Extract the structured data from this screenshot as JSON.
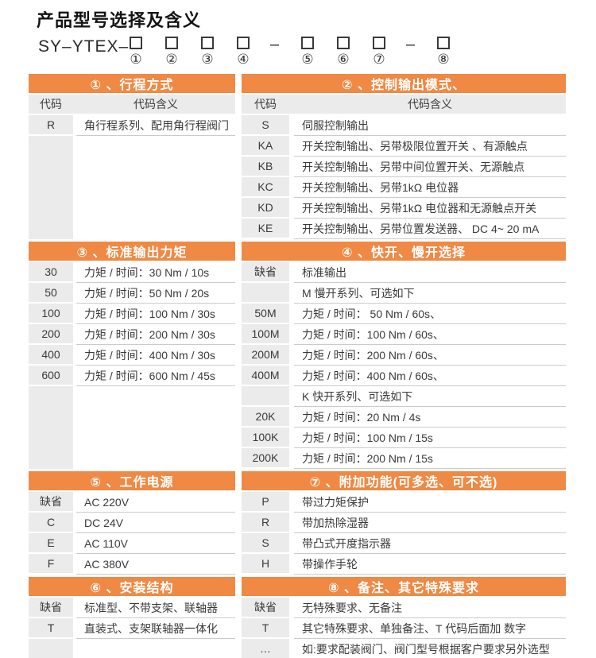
{
  "page": {
    "title": "产品型号选择及含义",
    "accent_color": "#EF8944",
    "cell_gray": "#EBEBEB",
    "line_color": "#CBCBCB",
    "text_color": "#3A3A3A"
  },
  "model": {
    "prefix": "SY–YTEX–",
    "separator": "–",
    "groups": [
      {
        "boxes": [
          "①",
          "②",
          "③",
          "④"
        ]
      },
      {
        "boxes": [
          "⑤",
          "⑥",
          "⑦"
        ]
      },
      {
        "boxes": [
          "⑧"
        ]
      }
    ]
  },
  "col_headers": {
    "code": "代码",
    "meaning": "代码含义"
  },
  "bands": [
    {
      "left": {
        "header": "① 、行程方式",
        "show_col_headers": true,
        "rows": [
          {
            "code": "R",
            "meaning": "角行程系列、配用角行程阀门"
          }
        ],
        "filler": true
      },
      "right": {
        "header": "② 、控制输出模式、",
        "show_col_headers": true,
        "rows": [
          {
            "code": "S",
            "meaning": "伺服控制输出"
          },
          {
            "code": "KA",
            "meaning": "开关控制输出、另带极限位置开关 、有源触点"
          },
          {
            "code": "KB",
            "meaning": "开关控制输出、另带中间位置开关、无源触点"
          },
          {
            "code": "KC",
            "meaning": "开关控制输出、另带1kΩ 电位器"
          },
          {
            "code": "KD",
            "meaning": "开关控制输出、另带1kΩ 电位器和无源触点开关"
          },
          {
            "code": "KE",
            "meaning": "开关控制输出、另带位置发送器、 DC 4~ 20 mA"
          }
        ],
        "filler": false
      }
    },
    {
      "left": {
        "header": "③ 、标准输出力矩",
        "show_col_headers": false,
        "rows": [
          {
            "code": "30",
            "meaning": "力矩 / 时间：30 Nm / 10s"
          },
          {
            "code": "50",
            "meaning": "力矩 / 时间：50 Nm / 20s"
          },
          {
            "code": "100",
            "meaning": "力矩 / 时间：100 Nm / 30s"
          },
          {
            "code": "200",
            "meaning": "力矩 / 时间：200 Nm / 30s"
          },
          {
            "code": "400",
            "meaning": "力矩 / 时间：400 Nm / 30s"
          },
          {
            "code": "600",
            "meaning": "力矩 / 时间：600 Nm / 45s"
          }
        ],
        "filler": true
      },
      "right": {
        "header": "④ 、快开、慢开选择",
        "show_col_headers": false,
        "rows": [
          {
            "code": "缺省",
            "meaning": "标准输出"
          },
          {
            "code": "",
            "meaning": "M 慢开系列、可选如下"
          },
          {
            "code": "50M",
            "meaning": "力矩 / 时间： 50 Nm / 60s、"
          },
          {
            "code": "100M",
            "meaning": "力矩 / 时间：100 Nm / 60s、"
          },
          {
            "code": "200M",
            "meaning": "力矩 / 时间：200 Nm / 60s、"
          },
          {
            "code": "400M",
            "meaning": "力矩 / 时间：400 Nm / 60s、"
          },
          {
            "code": "",
            "meaning": "K 快开系列、可选如下"
          },
          {
            "code": "20K",
            "meaning": "力矩 / 时间：20 Nm / 4s"
          },
          {
            "code": "100K",
            "meaning": "力矩 / 时间：100 Nm / 15s"
          },
          {
            "code": "200K",
            "meaning": "力矩 / 时间：200 Nm / 15s"
          }
        ],
        "filler": false
      }
    },
    {
      "left": {
        "header": "⑤ 、工作电源",
        "show_col_headers": false,
        "rows": [
          {
            "code": "缺省",
            "meaning": "AC 220V"
          },
          {
            "code": "C",
            "meaning": "DC 24V"
          },
          {
            "code": "E",
            "meaning": "AC 110V"
          },
          {
            "code": "F",
            "meaning": "AC 380V"
          }
        ],
        "filler": false
      },
      "right": {
        "header": "⑦ 、附加功能(可多选、可不选)",
        "show_col_headers": false,
        "rows": [
          {
            "code": "P",
            "meaning": "带过力矩保护"
          },
          {
            "code": "R",
            "meaning": "带加热除湿器"
          },
          {
            "code": "S",
            "meaning": "带凸式开度指示器"
          },
          {
            "code": "H",
            "meaning": "带操作手轮"
          }
        ],
        "filler": false
      }
    },
    {
      "left": {
        "header": "⑥ 、安装结构",
        "show_col_headers": false,
        "rows": [
          {
            "code": "缺省",
            "meaning": "标准型、不带支架、联轴器"
          },
          {
            "code": "T",
            "meaning": "直装式、支架联轴器一体化"
          },
          {
            "code": "",
            "meaning": ""
          }
        ],
        "filler": false
      },
      "right": {
        "header": "⑧ 、备注、其它特殊要求",
        "show_col_headers": false,
        "rows": [
          {
            "code": "缺省",
            "meaning": "无特殊要求、无备注"
          },
          {
            "code": "T",
            "meaning": "其它特殊要求、单独备注、T 代码后面加 数字"
          },
          {
            "code": "…",
            "meaning": "如:要求配装阀门、阀门型号根据客户要求另外选型"
          }
        ],
        "filler": false
      }
    }
  ]
}
